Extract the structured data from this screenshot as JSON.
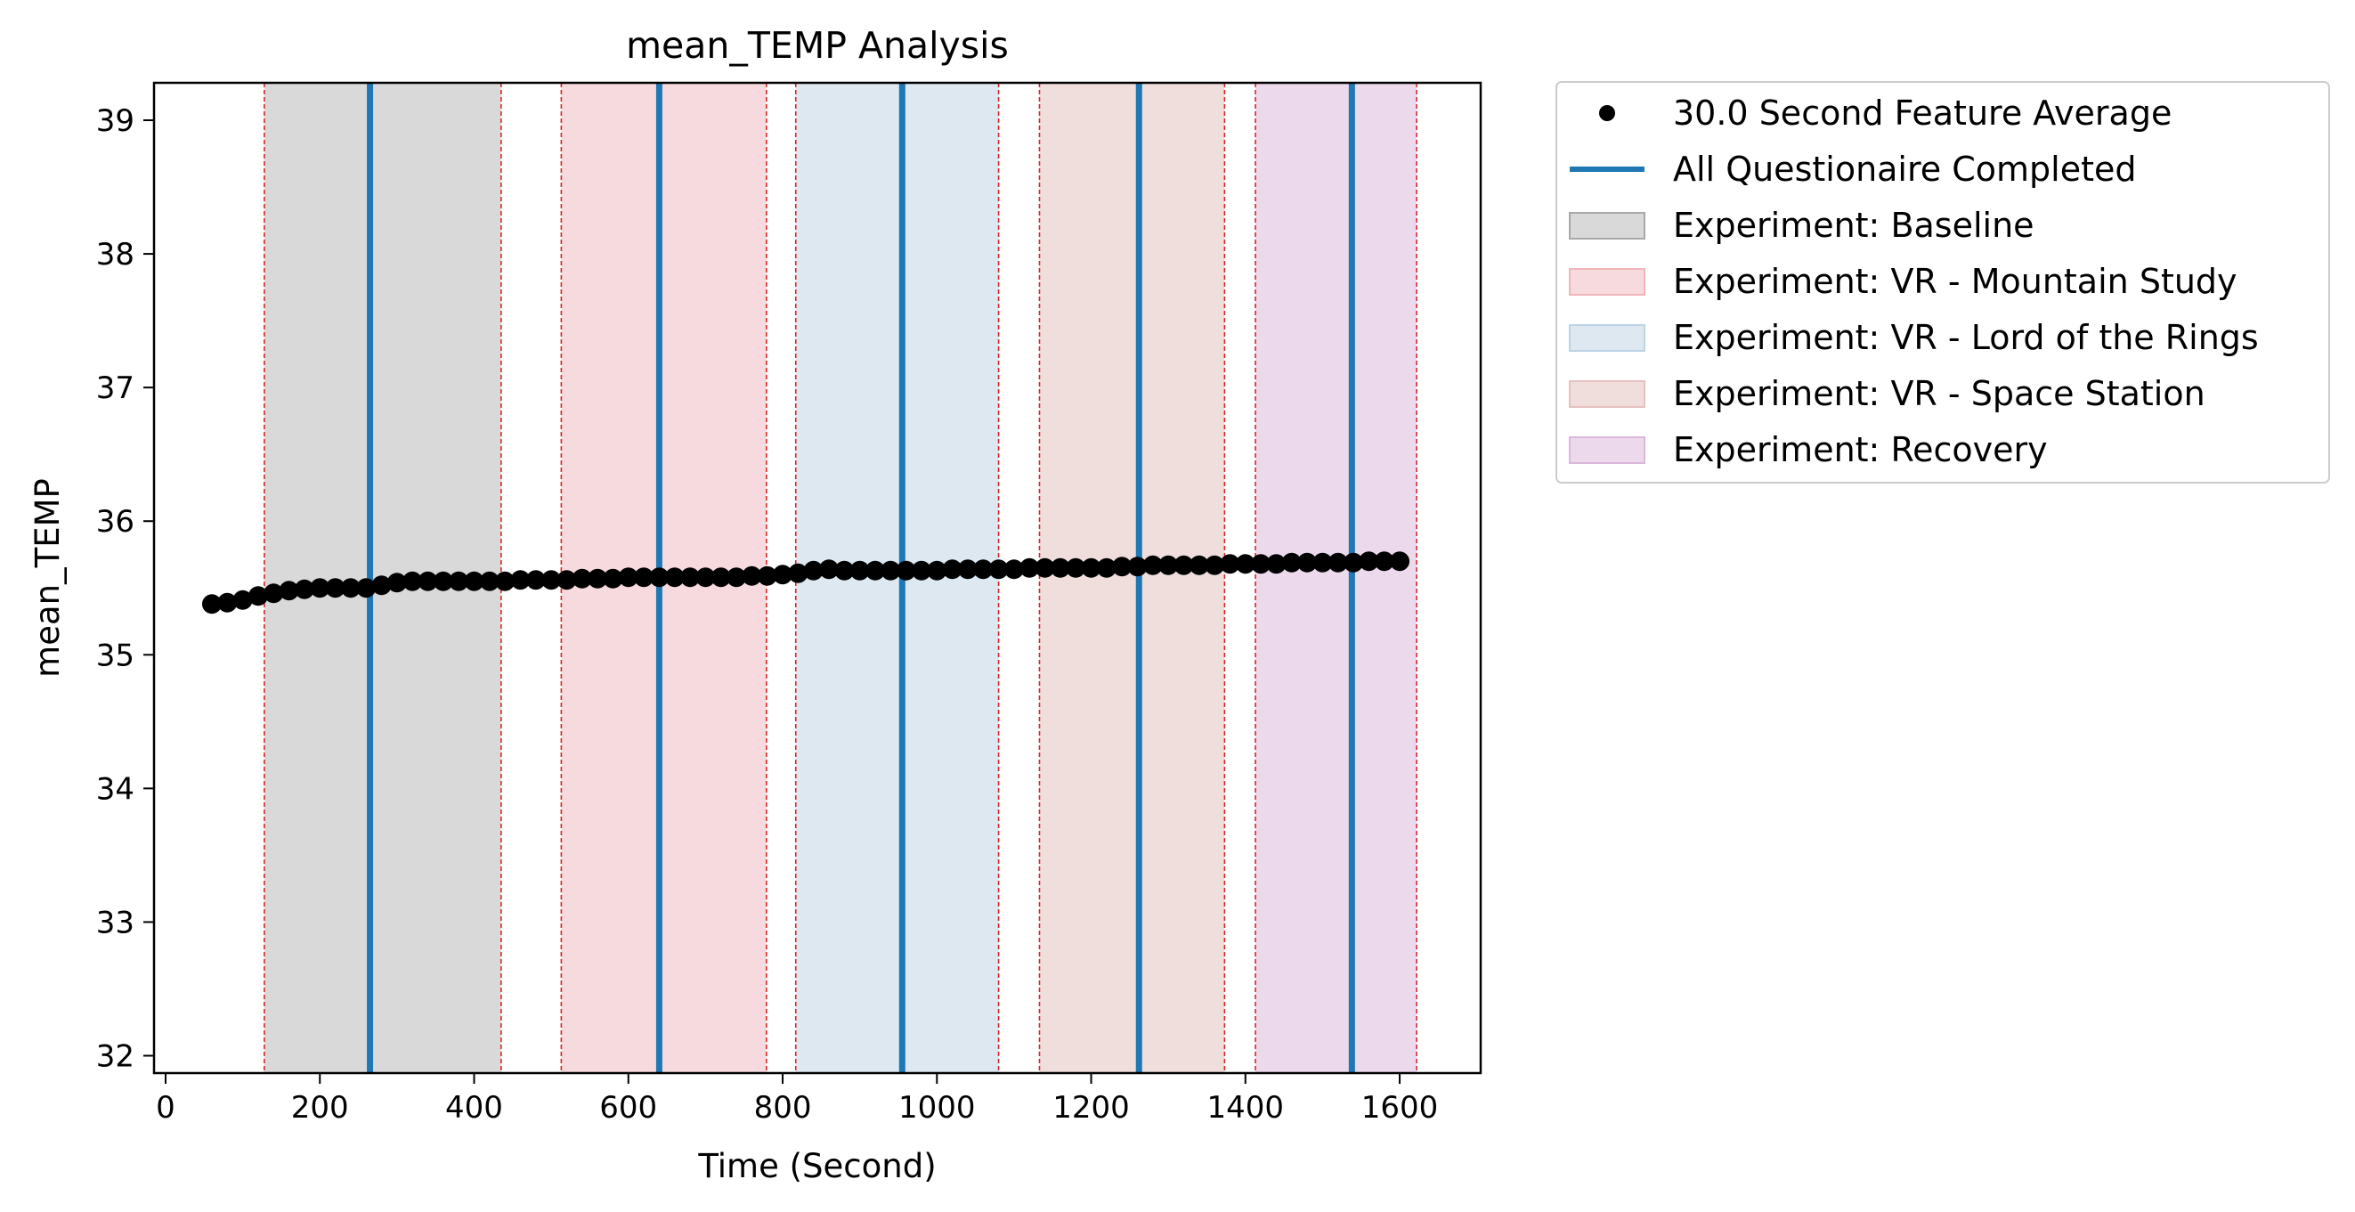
{
  "chart_data": {
    "type": "scatter",
    "title": "mean_TEMP Analysis",
    "xlabel": "Time (Second)",
    "ylabel": "mean_TEMP",
    "xlim": [
      -15,
      1705
    ],
    "ylim": [
      31.87,
      39.28
    ],
    "xticks": [
      0,
      200,
      400,
      600,
      800,
      1000,
      1200,
      1400,
      1600
    ],
    "xtick_labels": [
      "0",
      "200",
      "400",
      "600",
      "800",
      "1000",
      "1200",
      "1400",
      "1600"
    ],
    "yticks": [
      32,
      33,
      34,
      35,
      36,
      37,
      38,
      39
    ],
    "ytick_labels": [
      "32",
      "33",
      "34",
      "35",
      "36",
      "37",
      "38",
      "39"
    ],
    "grid": false,
    "legend_placement": "outside-upper-right",
    "series": [
      {
        "name": "30.0 Second Feature Average",
        "kind": "points",
        "color": "#000000",
        "x": [
          60,
          80,
          100,
          120,
          140,
          160,
          180,
          200,
          220,
          240,
          260,
          280,
          300,
          320,
          340,
          360,
          380,
          400,
          420,
          440,
          460,
          480,
          500,
          520,
          540,
          560,
          580,
          600,
          620,
          640,
          660,
          680,
          700,
          720,
          740,
          760,
          780,
          800,
          820,
          840,
          860,
          880,
          900,
          920,
          940,
          960,
          980,
          1000,
          1020,
          1040,
          1060,
          1080,
          1100,
          1120,
          1140,
          1160,
          1180,
          1200,
          1220,
          1240,
          1260,
          1280,
          1300,
          1320,
          1340,
          1360,
          1380,
          1400,
          1420,
          1440,
          1460,
          1480,
          1500,
          1520,
          1540,
          1560,
          1580,
          1600
        ],
        "y": [
          35.38,
          35.39,
          35.41,
          35.44,
          35.46,
          35.48,
          35.49,
          35.5,
          35.5,
          35.5,
          35.5,
          35.52,
          35.54,
          35.55,
          35.55,
          35.55,
          35.55,
          35.55,
          35.55,
          35.55,
          35.56,
          35.56,
          35.56,
          35.56,
          35.57,
          35.57,
          35.57,
          35.58,
          35.58,
          35.58,
          35.58,
          35.58,
          35.58,
          35.58,
          35.58,
          35.59,
          35.59,
          35.6,
          35.61,
          35.63,
          35.64,
          35.63,
          35.63,
          35.63,
          35.63,
          35.63,
          35.63,
          35.63,
          35.64,
          35.64,
          35.64,
          35.64,
          35.64,
          35.65,
          35.65,
          35.65,
          35.65,
          35.65,
          35.65,
          35.66,
          35.66,
          35.67,
          35.67,
          35.67,
          35.67,
          35.67,
          35.68,
          35.68,
          35.68,
          35.68,
          35.69,
          35.69,
          35.69,
          35.69,
          35.69,
          35.7,
          35.7,
          35.7
        ]
      },
      {
        "name": "All Questionaire Completed",
        "kind": "vlines",
        "color": "#1f77b4",
        "x": [
          265,
          640,
          955,
          1262,
          1538
        ]
      }
    ],
    "regions": [
      {
        "name": "Experiment: Baseline",
        "start": 128,
        "end": 435,
        "color": "#d9d9d9",
        "stroke": "#a8a8a8"
      },
      {
        "name": "Experiment: VR - Mountain Study",
        "start": 513,
        "end": 779,
        "color": "#f7dadd",
        "stroke": "#f2b4ba"
      },
      {
        "name": "Experiment: VR - Lord of the Rings",
        "start": 817,
        "end": 1080,
        "color": "#dde8f1",
        "stroke": "#bcd3e7"
      },
      {
        "name": "Experiment: VR - Space Station",
        "start": 1133,
        "end": 1373,
        "color": "#f0dedd",
        "stroke": "#e6c0bf"
      },
      {
        "name": "Experiment: Recovery",
        "start": 1413,
        "end": 1622,
        "color": "#ecd9ec",
        "stroke": "#dcb7dc"
      }
    ],
    "boundary_line_color": "#d62728"
  }
}
